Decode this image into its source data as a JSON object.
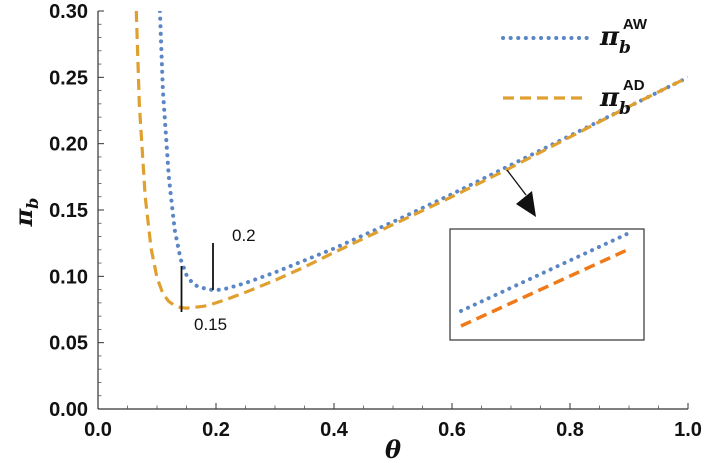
{
  "chart_data": {
    "type": "line",
    "xlabel": "θ",
    "ylabel": "π",
    "ylabel_sub": "b",
    "xlim": [
      0,
      1.0
    ],
    "ylim": [
      0,
      0.3
    ],
    "x_ticks": [
      "0.0",
      "0.2",
      "0.4",
      "0.6",
      "0.8",
      "1.0"
    ],
    "y_ticks": [
      "0.00",
      "0.05",
      "0.10",
      "0.15",
      "0.20",
      "0.25",
      "0.30"
    ],
    "x_tick_values": [
      0,
      0.2,
      0.4,
      0.6,
      0.8,
      1.0
    ],
    "y_tick_values": [
      0,
      0.05,
      0.1,
      0.15,
      0.2,
      0.25,
      0.3
    ],
    "series": [
      {
        "name": "π_b^AW",
        "legend_base": "π",
        "legend_sub": "b",
        "legend_sup": "AW",
        "style": "dotted",
        "color": "#5b86c6",
        "x": [
          0.105,
          0.11,
          0.12,
          0.13,
          0.14,
          0.15,
          0.16,
          0.17,
          0.18,
          0.19,
          0.2,
          0.22,
          0.25,
          0.3,
          0.35,
          0.4,
          0.5,
          0.6,
          0.7,
          0.8,
          0.9,
          1.0
        ],
        "y": [
          0.3,
          0.24,
          0.175,
          0.135,
          0.113,
          0.101,
          0.095,
          0.092,
          0.091,
          0.09,
          0.0895,
          0.091,
          0.095,
          0.103,
          0.112,
          0.121,
          0.141,
          0.162,
          0.184,
          0.206,
          0.228,
          0.25
        ]
      },
      {
        "name": "π_b^AD",
        "legend_base": "π",
        "legend_sub": "b",
        "legend_sup": "AD",
        "style": "dashed",
        "color": "#e0a030",
        "x": [
          0.065,
          0.07,
          0.08,
          0.09,
          0.1,
          0.11,
          0.12,
          0.13,
          0.14,
          0.15,
          0.16,
          0.18,
          0.2,
          0.22,
          0.25,
          0.3,
          0.35,
          0.4,
          0.5,
          0.6,
          0.7,
          0.8,
          0.9,
          1.0
        ],
        "y": [
          0.3,
          0.23,
          0.16,
          0.121,
          0.099,
          0.087,
          0.081,
          0.078,
          0.0765,
          0.076,
          0.0765,
          0.0775,
          0.08,
          0.083,
          0.088,
          0.097,
          0.107,
          0.118,
          0.139,
          0.16,
          0.182,
          0.205,
          0.228,
          0.25
        ]
      }
    ],
    "annotations": [
      {
        "text": "0.2",
        "x": 0.2
      },
      {
        "text": "0.15",
        "x": 0.15
      }
    ],
    "inset": {
      "colors": [
        "#5b86c6",
        "#f07a1a"
      ]
    }
  }
}
